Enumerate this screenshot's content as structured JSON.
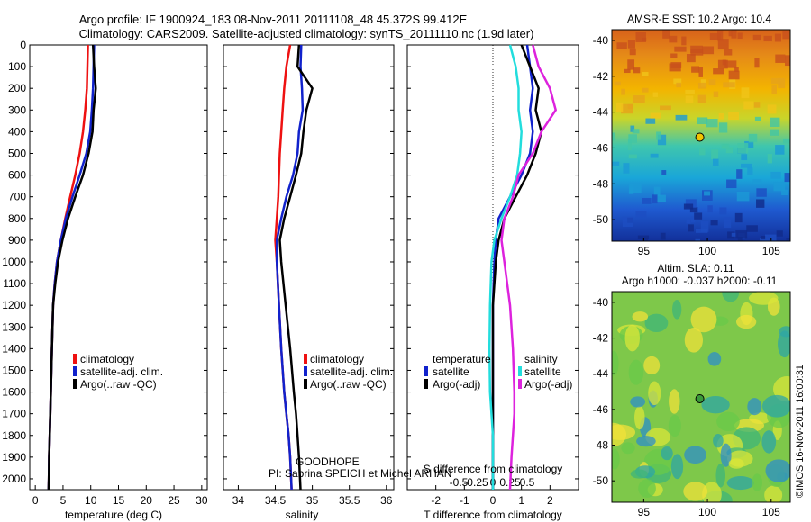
{
  "header": {
    "title_line1": "Argo profile: IF 1900924_183 08-Nov-2011 20111108_48 45.372S 99.412E",
    "title_line2": "Climatology: CARS2009. Satellite-adjusted climatology: synTS_20111110.nc (1.9d later)"
  },
  "colors": {
    "climatology": "#ee1111",
    "satellite": "#1122cc",
    "argo": "#000000",
    "sal_satellite": "#22dddd",
    "sal_argo": "#dd22dd"
  },
  "credits": {
    "project": "GOODHOPE",
    "pi": "PI: Sabrina SPEICH et Michel ARHAN",
    "imos": "©IMOS 16-Nov-2011 16:00:31"
  },
  "chart_data": [
    {
      "type": "line",
      "id": "temperature",
      "xlabel": "temperature (deg C)",
      "xlim": [
        -1,
        31
      ],
      "xticks": [
        0,
        5,
        10,
        15,
        20,
        25,
        30
      ],
      "ylim": [
        2050,
        0
      ],
      "yticks": [
        0,
        100,
        200,
        300,
        400,
        500,
        600,
        700,
        800,
        900,
        1000,
        1100,
        1200,
        1300,
        1400,
        1500,
        1600,
        1700,
        1800,
        1900,
        2000
      ],
      "legend": [
        "climatology",
        "satellite-adj. clim.",
        "Argo(..raw -QC)"
      ],
      "legend_position": "lower-right",
      "series": [
        {
          "name": "climatology",
          "color": "#ee1111",
          "x": [
            9.5,
            9.4,
            9.3,
            9.0,
            8.6,
            8.0,
            7.2,
            6.3,
            5.4,
            4.6,
            3.9,
            3.5,
            3.2,
            3.0,
            2.8,
            2.7,
            2.6,
            2.5,
            2.45,
            2.4
          ],
          "y": [
            0,
            100,
            200,
            300,
            400,
            500,
            600,
            700,
            800,
            900,
            1000,
            1100,
            1200,
            1400,
            1600,
            1700,
            1800,
            1900,
            2000,
            2050
          ]
        },
        {
          "name": "satellite-adj. clim.",
          "color": "#1122cc",
          "x": [
            10.6,
            10.5,
            10.4,
            10.2,
            9.9,
            9.2,
            8.0,
            6.7,
            5.5,
            4.6,
            3.9,
            3.5,
            3.2,
            3.0,
            2.8,
            2.7,
            2.6,
            2.5,
            2.45,
            2.4
          ],
          "y": [
            0,
            100,
            200,
            300,
            400,
            500,
            600,
            700,
            800,
            900,
            1000,
            1100,
            1200,
            1400,
            1600,
            1700,
            1800,
            1900,
            2000,
            2050
          ]
        },
        {
          "name": "Argo(..raw -QC)",
          "color": "#000000",
          "x": [
            10.4,
            10.6,
            10.9,
            10.5,
            10.3,
            9.6,
            8.6,
            7.2,
            5.9,
            4.9,
            4.1,
            3.6,
            3.2,
            3.0,
            2.8,
            2.7,
            2.6,
            2.5,
            2.45,
            2.4
          ],
          "y": [
            0,
            100,
            200,
            300,
            400,
            500,
            600,
            700,
            800,
            900,
            1000,
            1100,
            1200,
            1400,
            1600,
            1700,
            1800,
            1900,
            2000,
            2050
          ]
        }
      ]
    },
    {
      "type": "line",
      "id": "salinity",
      "xlabel": "salinity",
      "xlim": [
        33.8,
        36.1
      ],
      "xticks": [
        34,
        34.5,
        35,
        35.5,
        36
      ],
      "ylim": [
        2050,
        0
      ],
      "legend": [
        "climatology",
        "satellite-adj. clim.",
        "Argo(..raw -QC)"
      ],
      "legend_position": "lower-right",
      "series": [
        {
          "name": "climatology",
          "color": "#ee1111",
          "x": [
            34.7,
            34.65,
            34.62,
            34.6,
            34.58,
            34.56,
            34.55,
            34.54,
            34.52,
            34.5,
            34.52,
            34.55,
            34.58,
            34.62,
            34.65,
            34.68,
            34.7,
            34.72
          ],
          "y": [
            0,
            100,
            200,
            300,
            400,
            500,
            600,
            700,
            800,
            900,
            1000,
            1200,
            1400,
            1600,
            1700,
            1800,
            1900,
            2050
          ]
        },
        {
          "name": "satellite-adj. clim.",
          "color": "#1122cc",
          "x": [
            34.85,
            34.84,
            34.86,
            34.87,
            34.82,
            34.8,
            34.74,
            34.65,
            34.58,
            34.52,
            34.52,
            34.55,
            34.58,
            34.62,
            34.65,
            34.68,
            34.7,
            34.72
          ],
          "y": [
            0,
            100,
            200,
            300,
            400,
            500,
            600,
            700,
            800,
            900,
            1000,
            1200,
            1400,
            1600,
            1700,
            1800,
            1900,
            2050
          ]
        },
        {
          "name": "Argo(..raw -QC)",
          "color": "#000000",
          "x": [
            34.82,
            34.8,
            35.0,
            34.92,
            34.88,
            34.85,
            34.78,
            34.7,
            34.62,
            34.56,
            34.58,
            34.64,
            34.7,
            34.75,
            34.78,
            34.8,
            34.82,
            34.84
          ],
          "y": [
            0,
            100,
            200,
            300,
            400,
            500,
            600,
            700,
            800,
            900,
            1000,
            1200,
            1400,
            1600,
            1700,
            1800,
            1900,
            2050
          ]
        }
      ]
    },
    {
      "type": "line",
      "id": "difference",
      "xlabel": "T difference from climatology",
      "xlabel_top": "S difference from climatology",
      "xlim": [
        -3,
        3
      ],
      "xticks": [
        -2,
        -1,
        0,
        1,
        2
      ],
      "xticks_top": [
        -0.5,
        -0.25,
        0,
        0.25,
        0.5
      ],
      "ylim": [
        2050,
        0
      ],
      "legend_temperature_title": "temperature",
      "legend_salinity_title": "salinity",
      "legend": [
        "satellite",
        "Argo(-adj)",
        "satellite",
        "Argo(-adj)"
      ],
      "legend_position": "lower-center",
      "series": [
        {
          "name": "temperature satellite",
          "color": "#1122cc",
          "x": [
            1.2,
            1.3,
            1.4,
            1.3,
            1.4,
            1.3,
            1.0,
            0.6,
            0.2,
            0.1,
            0.05,
            0.0,
            0.0,
            0.0,
            0.0,
            0.0,
            0.0,
            0.0
          ],
          "y": [
            0,
            100,
            200,
            300,
            400,
            500,
            600,
            700,
            800,
            900,
            1000,
            1200,
            1400,
            1600,
            1700,
            1800,
            1900,
            2050
          ]
        },
        {
          "name": "temperature Argo(-adj)",
          "color": "#000000",
          "x": [
            1.0,
            1.3,
            1.6,
            1.5,
            1.7,
            1.5,
            1.2,
            0.8,
            0.4,
            0.2,
            0.1,
            0.0,
            0.0,
            0.0,
            0.0,
            0.0,
            0.0,
            0.0
          ],
          "y": [
            0,
            100,
            200,
            300,
            400,
            500,
            600,
            700,
            800,
            900,
            1000,
            1200,
            1400,
            1600,
            1700,
            1800,
            1900,
            2050
          ]
        },
        {
          "name": "salinity satellite",
          "color": "#22dddd",
          "x": [
            0.6,
            0.8,
            0.9,
            0.9,
            1.0,
            0.95,
            0.85,
            0.6,
            0.3,
            0.05,
            -0.05,
            -0.1,
            -0.12,
            -0.1,
            -0.05,
            0.0,
            0.0,
            0.0
          ],
          "y": [
            0,
            100,
            200,
            300,
            400,
            500,
            600,
            700,
            800,
            900,
            1000,
            1200,
            1400,
            1600,
            1700,
            1800,
            1900,
            2050
          ]
        },
        {
          "name": "salinity Argo(-adj)",
          "color": "#dd22dd",
          "x": [
            1.4,
            1.6,
            2.0,
            2.2,
            1.7,
            1.4,
            0.9,
            0.7,
            0.4,
            0.3,
            0.4,
            0.6,
            0.7,
            0.75,
            0.75,
            0.7,
            0.65,
            0.6
          ],
          "y": [
            0,
            100,
            200,
            300,
            400,
            500,
            600,
            700,
            800,
            900,
            1000,
            1200,
            1400,
            1600,
            1700,
            1800,
            1900,
            2050
          ]
        }
      ]
    },
    {
      "type": "heatmap",
      "id": "sst_map",
      "title": "AMSR-E SST: 10.2  Argo: 10.4",
      "xlim": [
        92.5,
        106.5
      ],
      "ylim": [
        -51.2,
        -39.4
      ],
      "xticks": [
        95,
        100,
        105
      ],
      "yticks": [
        -40,
        -42,
        -44,
        -46,
        -48,
        -50
      ],
      "marker": {
        "lon": 99.4,
        "lat": -45.4
      }
    },
    {
      "type": "heatmap",
      "id": "sla_map",
      "title_line1": "Altim. SLA: 0.11",
      "title_line2": "Argo h1000: -0.037 h2000: -0.11",
      "xlim": [
        92.5,
        106.5
      ],
      "ylim": [
        -51.2,
        -39.4
      ],
      "xticks": [
        95,
        100,
        105
      ],
      "yticks": [
        -40,
        -42,
        -44,
        -46,
        -48,
        -50
      ],
      "marker": {
        "lon": 99.4,
        "lat": -45.4
      }
    }
  ]
}
